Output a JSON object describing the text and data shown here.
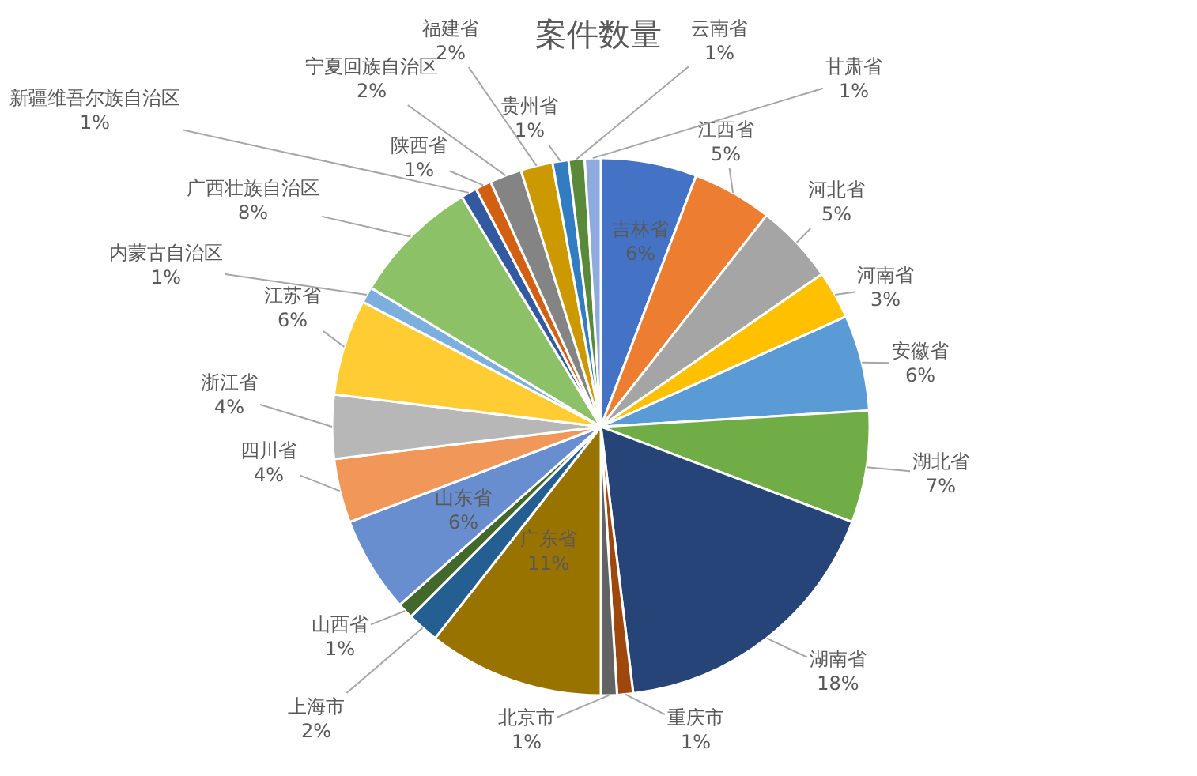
{
  "chart_data": {
    "type": "pie",
    "title": "案件数量",
    "categories": [
      "吉林省",
      "江西省",
      "河北省",
      "河南省",
      "安徽省",
      "湖北省",
      "湖南省",
      "重庆市",
      "北京市",
      "广东省",
      "上海市",
      "山西省",
      "山东省",
      "四川省",
      "浙江省",
      "江苏省",
      "内蒙古自治区",
      "广西壮族自治区",
      "新疆维吾尔族自治区",
      "陕西省",
      "宁夏回族自治区",
      "福建省",
      "贵州省",
      "云南省",
      "甘肃省"
    ],
    "values": [
      6,
      5,
      5,
      3,
      6,
      7,
      18,
      1,
      1,
      11,
      2,
      1,
      6,
      4,
      4,
      6,
      1,
      8,
      1,
      1,
      2,
      2,
      1,
      1,
      1
    ],
    "value_labels": [
      "6%",
      "5%",
      "5%",
      "3%",
      "6%",
      "7%",
      "18%",
      "1%",
      "1%",
      "11%",
      "2%",
      "1%",
      "6%",
      "4%",
      "4%",
      "6%",
      "1%",
      "8%",
      "1%",
      "1%",
      "2%",
      "2%",
      "1%",
      "1%",
      "1%"
    ],
    "colors": [
      "#4472c4",
      "#ed7d31",
      "#a5a5a5",
      "#ffc000",
      "#5b9bd5",
      "#70ad47",
      "#264478",
      "#9e480e",
      "#636363",
      "#997300",
      "#255e91",
      "#43682b",
      "#698ed0",
      "#f1975a",
      "#b7b7b7",
      "#ffcd33",
      "#7cafdd",
      "#8cc168",
      "#335aa1",
      "#d26012",
      "#848484",
      "#cc9a00",
      "#327dc2",
      "#5a8a39",
      "#8faadc"
    ],
    "legend": false
  }
}
